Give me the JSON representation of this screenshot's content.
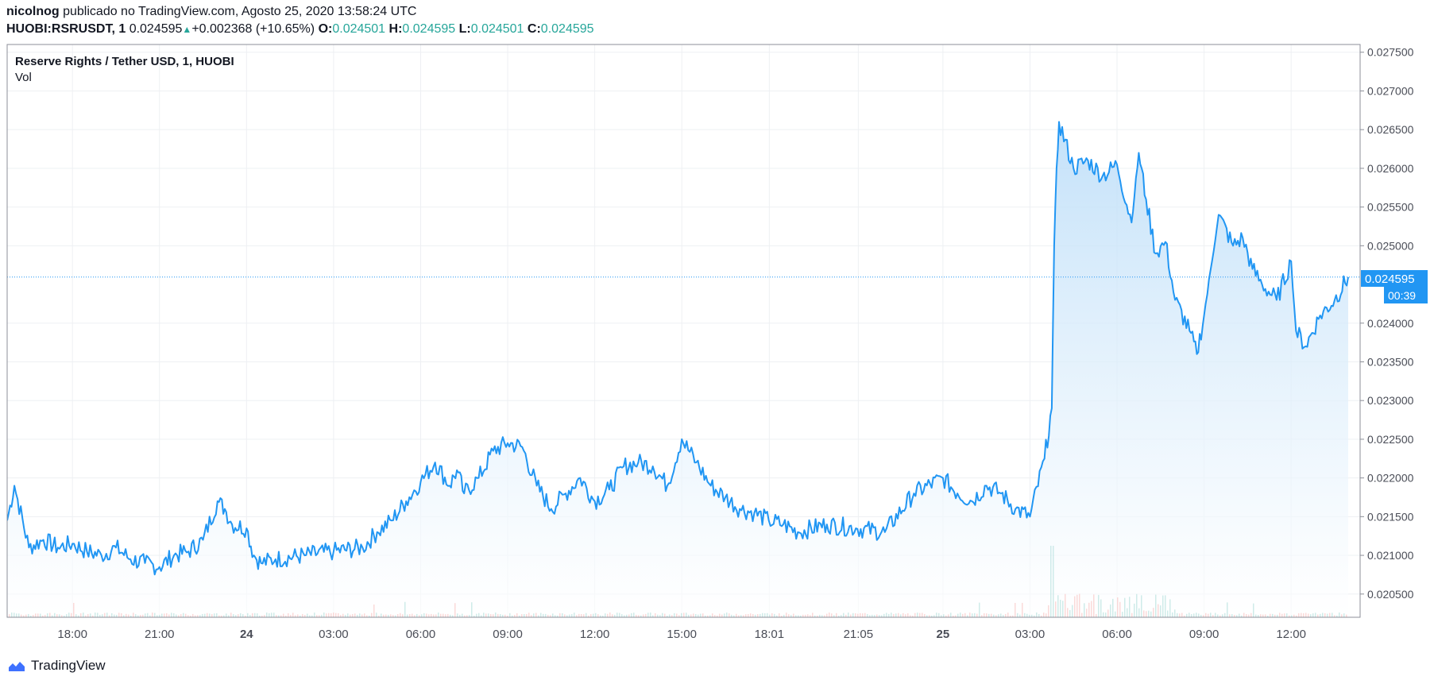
{
  "header": {
    "user": "nicolnog",
    "published_text": "publicado no TradingView.com, Agosto 25, 2020 13:58:24 UTC",
    "symbol": "HUOBI:RSRUSDT, 1",
    "last": "0.024595",
    "change": "+0.002368 (+10.65%)",
    "o_label": "O:",
    "o_value": "0.024501",
    "h_label": "H:",
    "h_value": "0.024595",
    "l_label": "L:",
    "l_value": "0.024501",
    "c_label": "C:",
    "c_value": "0.024595"
  },
  "legend": {
    "title": "Reserve Rights / Tether USD, 1, HUOBI",
    "volume": "Vol"
  },
  "price_tag": {
    "value": "0.024595",
    "countdown": "00:39"
  },
  "footer": {
    "brand": "TradingView"
  },
  "colors": {
    "line": "#2196f3",
    "area_top": "#b9dcf8",
    "area_bottom": "#ffffff",
    "grid": "#eef0f3",
    "up": "#26a69a",
    "down": "#ef5350",
    "tag": "#2196f3"
  },
  "chart_data": {
    "type": "area",
    "title": "Reserve Rights / Tether USD, 1, HUOBI",
    "ylim": [
      0.0202,
      0.0276
    ],
    "y_ticks": [
      "0.027500",
      "0.027000",
      "0.026500",
      "0.026000",
      "0.025500",
      "0.025000",
      "0.024000",
      "0.023500",
      "0.023000",
      "0.022500",
      "0.022000",
      "0.021500",
      "0.021000",
      "0.020500"
    ],
    "x_ticks": [
      "18:00",
      "21:00",
      "24",
      "03:00",
      "06:00",
      "09:00",
      "12:00",
      "15:00",
      "18:01",
      "21:05",
      "25",
      "03:00",
      "06:00",
      "09:00",
      "12:00"
    ],
    "grid": true,
    "last_price": 0.024595,
    "series": [
      {
        "name": "RSRUSDT",
        "x": [
          "15:45",
          "16:00",
          "16:30",
          "17:00",
          "17:30",
          "18:00",
          "18:30",
          "19:00",
          "19:30",
          "20:00",
          "20:30",
          "21:00",
          "21:30",
          "22:00",
          "22:30",
          "23:00",
          "23:15",
          "23:30",
          "24 00:00",
          "00:15",
          "00:30",
          "01:00",
          "02:00",
          "03:00",
          "04:00",
          "04:30",
          "05:00",
          "05:30",
          "06:00",
          "06:30",
          "07:00",
          "07:15",
          "07:30",
          "08:00",
          "08:30",
          "09:00",
          "09:30",
          "10:00",
          "10:30",
          "11:00",
          "11:30",
          "12:00",
          "12:30",
          "13:00",
          "13:30",
          "14:00",
          "14:30",
          "15:00",
          "15:30",
          "16:00",
          "16:30",
          "17:00",
          "17:30",
          "18:00",
          "18:30",
          "19:00",
          "20:00",
          "21:00",
          "22:00",
          "23:00",
          "25 00:00",
          "00:30",
          "01:00",
          "01:30",
          "02:00",
          "02:30",
          "03:00",
          "03:30",
          "03:45",
          "03:50",
          "03:55",
          "04:00",
          "04:30",
          "05:00",
          "05:30",
          "06:00",
          "06:30",
          "06:45",
          "07:00",
          "07:20",
          "07:40",
          "08:00",
          "08:30",
          "08:45",
          "09:00",
          "09:30",
          "10:00",
          "10:20",
          "10:40",
          "11:00",
          "11:30",
          "12:00",
          "12:10",
          "12:30",
          "13:00",
          "13:30",
          "13:58"
        ],
        "values": [
          0.02145,
          0.0219,
          0.0211,
          0.0212,
          0.0211,
          0.02115,
          0.02105,
          0.021,
          0.0211,
          0.02095,
          0.0209,
          0.02085,
          0.021,
          0.02105,
          0.0212,
          0.0217,
          0.0216,
          0.0214,
          0.02135,
          0.021,
          0.0209,
          0.02095,
          0.021,
          0.02105,
          0.0211,
          0.0213,
          0.02145,
          0.0217,
          0.02195,
          0.0222,
          0.0219,
          0.0221,
          0.0218,
          0.022,
          0.02235,
          0.02245,
          0.0224,
          0.0219,
          0.0216,
          0.0218,
          0.022,
          0.0217,
          0.02185,
          0.02215,
          0.0222,
          0.02215,
          0.0219,
          0.0225,
          0.0222,
          0.0219,
          0.02175,
          0.0216,
          0.02155,
          0.02145,
          0.0214,
          0.0213,
          0.0214,
          0.02135,
          0.0213,
          0.0218,
          0.022,
          0.0218,
          0.0217,
          0.0219,
          0.0218,
          0.0216,
          0.0215,
          0.02225,
          0.0229,
          0.025,
          0.026,
          0.0266,
          0.026,
          0.0261,
          0.0259,
          0.02605,
          0.0253,
          0.0262,
          0.0256,
          0.0249,
          0.02505,
          0.0243,
          0.0239,
          0.0236,
          0.0241,
          0.0254,
          0.025,
          0.0251,
          0.0247,
          0.0245,
          0.0243,
          0.0248,
          0.0239,
          0.0237,
          0.0241,
          0.0243,
          0.024595
        ]
      }
    ]
  }
}
